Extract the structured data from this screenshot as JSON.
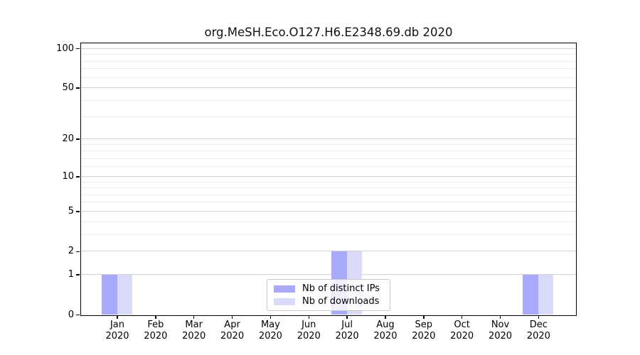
{
  "chart_data": {
    "type": "bar",
    "title": "org.MeSH.Eco.O127.H6.E2348.69.db 2020",
    "categories": [
      "Jan",
      "Feb",
      "Mar",
      "Apr",
      "May",
      "Jun",
      "Jul",
      "Aug",
      "Sep",
      "Oct",
      "Nov",
      "Dec"
    ],
    "category_year": "2020",
    "series": [
      {
        "name": "Nb of distinct IPs",
        "color": "#a9a9fa",
        "values": [
          1,
          0,
          0,
          0,
          0,
          0,
          2,
          0,
          0,
          0,
          0,
          1
        ]
      },
      {
        "name": "Nb of downloads",
        "color": "#dadaf9",
        "values": [
          1,
          0,
          0,
          0,
          0,
          0,
          2,
          0,
          0,
          0,
          0,
          1
        ]
      }
    ],
    "yscale": "log1p",
    "ylim": [
      0,
      114
    ],
    "yticks": [
      0,
      1,
      2,
      5,
      10,
      20,
      50,
      100
    ],
    "yticks_minor": [
      3,
      4,
      6,
      7,
      8,
      9,
      12,
      14,
      16,
      18,
      30,
      40,
      60,
      70,
      80,
      90
    ],
    "xlabel": "",
    "ylabel": "",
    "grid": true,
    "legend_position": "lower center",
    "colors": {
      "grid_major": "#d2d2d2",
      "grid_minor": "#ececec",
      "spine": "#000000",
      "legend_border": "#c8c8c8",
      "background": "#ffffff"
    }
  }
}
